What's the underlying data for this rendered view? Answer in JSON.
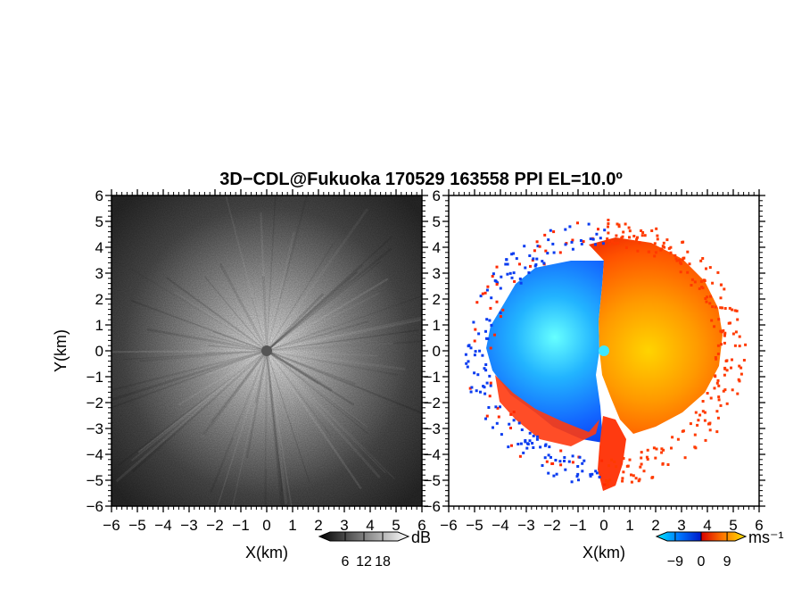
{
  "chart_data": [
    {
      "type": "heatmap",
      "title": "3D−CDL@Fukuoka 170529 163558 PPI EL=10.0º",
      "quantity": "backscatter intensity",
      "xlabel": "X(km)",
      "ylabel": "Y(km)",
      "xlim": [
        -6,
        6
      ],
      "ylim": [
        -6,
        6
      ],
      "xticks": [
        "−6",
        "−5",
        "−4",
        "−3",
        "−2",
        "−1",
        "0",
        "1",
        "2",
        "3",
        "4",
        "5",
        "6"
      ],
      "yticks": [
        "−6",
        "−5",
        "−4",
        "−3",
        "−2",
        "−1",
        "0",
        "1",
        "2",
        "3",
        "4",
        "5",
        "6"
      ],
      "colormap": "grayscale",
      "colors": {
        "low": "#1a1a1a",
        "high": "#f2f2f2"
      },
      "colorbar": {
        "unit": "dB",
        "ticks": [
          "6",
          "12",
          "18"
        ],
        "values": [
          6,
          12,
          18
        ],
        "range": [
          0,
          24
        ]
      },
      "features": {
        "max_range_km": 5.5,
        "center_blank": [
          0,
          0
        ]
      }
    },
    {
      "type": "heatmap",
      "quantity": "Doppler velocity",
      "xlabel": "X(km)",
      "xlim": [
        -6,
        6
      ],
      "ylim": [
        -6,
        6
      ],
      "xticks": [
        "−6",
        "−5",
        "−4",
        "−3",
        "−2",
        "−1",
        "0",
        "1",
        "2",
        "3",
        "4",
        "5",
        "6"
      ],
      "yticks": [
        "−6",
        "−5",
        "−4",
        "−3",
        "−2",
        "−1",
        "0",
        "1",
        "2",
        "3",
        "4",
        "5",
        "6"
      ],
      "colormap": "cyan-blue-red-yellow",
      "colors": {
        "negative_strong": "#00e5ff",
        "negative": "#0055ff",
        "positive": "#ff2a00",
        "positive_strong": "#ffd000"
      },
      "colorbar": {
        "unit": "ms⁻¹",
        "ticks": [
          "−9",
          "0",
          "9"
        ],
        "values": [
          -9,
          0,
          9
        ],
        "range": [
          -13,
          13
        ]
      },
      "features": {
        "max_range_km": 5.2,
        "west_half": "negative (approaching)",
        "east_half": "positive (receding)"
      }
    }
  ]
}
